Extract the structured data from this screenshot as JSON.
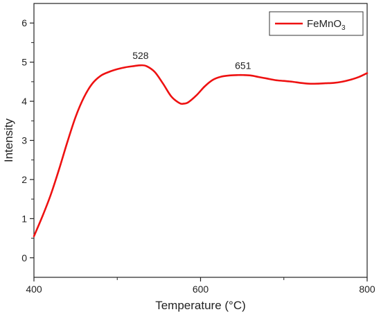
{
  "chart_data": {
    "type": "line",
    "xlabel": "Temperature (°C)",
    "ylabel": "Intensity",
    "xlim": [
      400,
      800
    ],
    "ylim": [
      -0.5,
      6.5
    ],
    "x_ticks": [
      400,
      600,
      800
    ],
    "x_minor_ticks": [
      500,
      700
    ],
    "y_ticks": [
      0,
      1,
      2,
      3,
      4,
      5,
      6
    ],
    "grid": false,
    "legend_position": "top-right",
    "series": [
      {
        "name": "FeMnO3",
        "color": "#ee1111",
        "x": [
          400,
          410,
          420,
          430,
          440,
          450,
          460,
          470,
          480,
          490,
          500,
          510,
          520,
          528,
          535,
          545,
          555,
          565,
          575,
          580,
          585,
          595,
          605,
          615,
          625,
          635,
          645,
          651,
          660,
          670,
          680,
          690,
          700,
          710,
          720,
          730,
          740,
          750,
          760,
          770,
          780,
          790,
          800
        ],
        "y": [
          0.55,
          1.05,
          1.6,
          2.25,
          2.95,
          3.6,
          4.1,
          4.45,
          4.65,
          4.75,
          4.82,
          4.87,
          4.9,
          4.92,
          4.9,
          4.75,
          4.45,
          4.12,
          3.95,
          3.94,
          3.97,
          4.15,
          4.38,
          4.55,
          4.63,
          4.66,
          4.67,
          4.67,
          4.66,
          4.62,
          4.58,
          4.54,
          4.52,
          4.5,
          4.47,
          4.45,
          4.45,
          4.46,
          4.47,
          4.5,
          4.55,
          4.62,
          4.72
        ]
      }
    ],
    "annotations": [
      {
        "text": "528",
        "x": 528,
        "y": 4.92
      },
      {
        "text": "651",
        "x": 651,
        "y": 4.67
      }
    ]
  },
  "legend": {
    "base": "FeMnO",
    "subscript": "3"
  }
}
